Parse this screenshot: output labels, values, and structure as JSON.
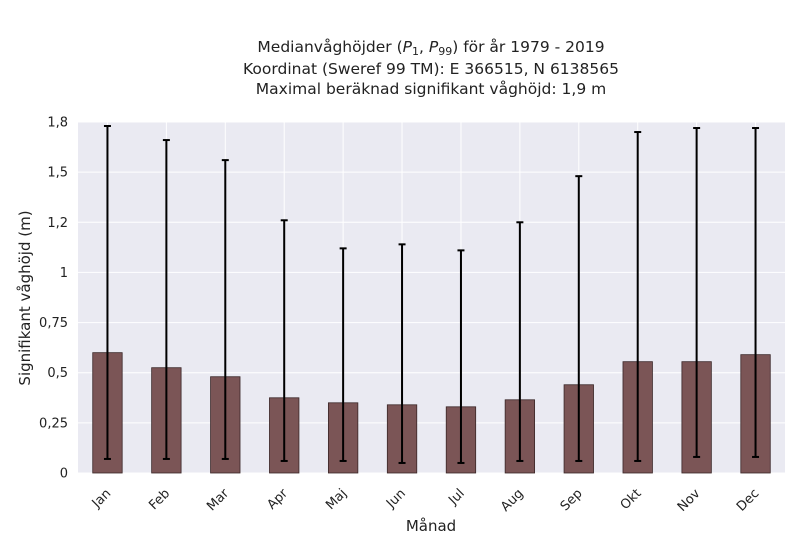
{
  "chart_data": {
    "type": "bar",
    "title_lines": [
      "Medianvåghöjder (P1, P99) för år 1979 - 2019",
      "Koordinat (Sweref 99 TM): E 366515, N 6138565",
      "Maximal beräknad signifikant våghöjd: 1,9 m"
    ],
    "xlabel": "Månad",
    "ylabel": "Signifikant våghöjd (m)",
    "categories": [
      "Jan",
      "Feb",
      "Mar",
      "Apr",
      "Maj",
      "Jun",
      "Jul",
      "Aug",
      "Sep",
      "Okt",
      "Nov",
      "Dec"
    ],
    "values": [
      0.6,
      0.525,
      0.48,
      0.375,
      0.35,
      0.34,
      0.33,
      0.365,
      0.44,
      0.555,
      0.555,
      0.59
    ],
    "p1": [
      0.07,
      0.07,
      0.07,
      0.06,
      0.06,
      0.05,
      0.05,
      0.06,
      0.06,
      0.06,
      0.08,
      0.08
    ],
    "p99": [
      1.73,
      1.66,
      1.56,
      1.26,
      1.12,
      1.14,
      1.11,
      1.25,
      1.48,
      1.7,
      1.72,
      1.72
    ],
    "yticks": [
      0,
      0.25,
      0.5,
      0.75,
      1,
      1.25,
      1.5,
      1.75
    ],
    "ytick_labels": [
      "0",
      "0,25",
      "0,5",
      "0,75",
      "1",
      "1,2",
      "1,5",
      "1,8"
    ],
    "ylim": [
      0,
      1.75
    ],
    "grid": true,
    "colors": {
      "bar": "#7b5556",
      "bar_edge": "#3a2627",
      "error": "#000000",
      "plot_bg": "#eaeaf2",
      "grid": "#ffffff"
    }
  }
}
